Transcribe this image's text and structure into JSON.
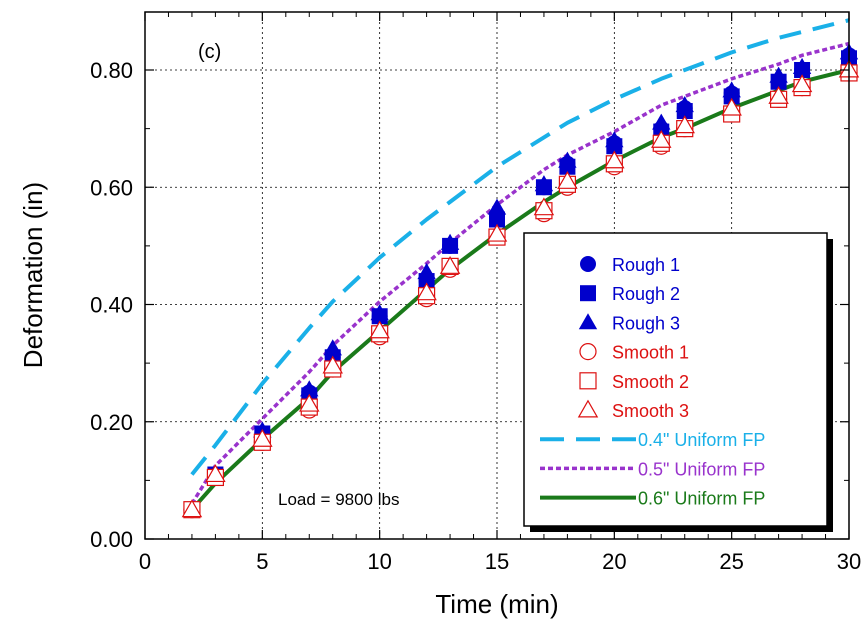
{
  "chart_data": {
    "type": "scatter",
    "panel_label": "(c)",
    "annotation": "Load = 9800 lbs",
    "xlabel": "Time (min)",
    "ylabel": "Deformation (in)",
    "xlim": [
      0,
      30
    ],
    "ylim": [
      0,
      0.9
    ],
    "xticks": [
      0,
      5,
      10,
      15,
      20,
      25,
      30
    ],
    "xtick_labels": [
      "0",
      "5",
      "10",
      "15",
      "20",
      "25",
      "30"
    ],
    "yticks": [
      0,
      0.2,
      0.4,
      0.6,
      0.8
    ],
    "ytick_labels": [
      "0.00",
      "0.20",
      "0.40",
      "0.60",
      "0.80"
    ],
    "grid": true,
    "legend_position": "bottom-right",
    "series": [
      {
        "name": "Rough 1",
        "kind": "marker",
        "marker": "circle-filled",
        "color": "#0000cc",
        "x": [
          2,
          3,
          5,
          7,
          8,
          10,
          12,
          13,
          15,
          17,
          18,
          20,
          22,
          23,
          25,
          27,
          28,
          30
        ],
        "y": [
          0.05,
          0.11,
          0.18,
          0.25,
          0.31,
          0.38,
          0.44,
          0.5,
          0.55,
          0.6,
          0.64,
          0.675,
          0.7,
          0.735,
          0.76,
          0.78,
          0.8,
          0.825
        ]
      },
      {
        "name": "Rough 2",
        "kind": "marker",
        "marker": "square-filled",
        "color": "#0000cc",
        "x": [
          2,
          3,
          5,
          7,
          8,
          10,
          12,
          13,
          15,
          17,
          18,
          20,
          22,
          23,
          25,
          27,
          28,
          30
        ],
        "y": [
          0.05,
          0.11,
          0.18,
          0.245,
          0.31,
          0.38,
          0.44,
          0.5,
          0.545,
          0.6,
          0.635,
          0.67,
          0.695,
          0.73,
          0.755,
          0.78,
          0.8,
          0.82
        ]
      },
      {
        "name": "Rough 3",
        "kind": "marker",
        "marker": "triangle-filled",
        "color": "#0000cc",
        "x": [
          2,
          3,
          5,
          7,
          8,
          10,
          12,
          13,
          15,
          17,
          18,
          20,
          22,
          23,
          25,
          27,
          28,
          30
        ],
        "y": [
          0.05,
          0.11,
          0.185,
          0.255,
          0.325,
          0.385,
          0.455,
          0.505,
          0.565,
          0.605,
          0.645,
          0.68,
          0.71,
          0.74,
          0.765,
          0.79,
          0.805,
          0.83
        ]
      },
      {
        "name": "Smooth 1",
        "kind": "marker",
        "marker": "circle-open",
        "color": "#dd1111",
        "x": [
          2,
          3,
          5,
          7,
          8,
          10,
          12,
          13,
          15,
          17,
          18,
          20,
          22,
          23,
          25,
          27,
          28,
          30
        ],
        "y": [
          0.05,
          0.105,
          0.165,
          0.22,
          0.29,
          0.345,
          0.41,
          0.46,
          0.515,
          0.555,
          0.6,
          0.635,
          0.67,
          0.7,
          0.725,
          0.75,
          0.77,
          0.795
        ]
      },
      {
        "name": "Smooth 2",
        "kind": "marker",
        "marker": "square-open",
        "color": "#dd1111",
        "x": [
          2,
          3,
          5,
          7,
          8,
          10,
          12,
          13,
          15,
          17,
          18,
          20,
          22,
          23,
          25,
          27,
          28,
          30
        ],
        "y": [
          0.05,
          0.105,
          0.165,
          0.225,
          0.29,
          0.35,
          0.415,
          0.465,
          0.515,
          0.56,
          0.605,
          0.64,
          0.675,
          0.7,
          0.725,
          0.75,
          0.77,
          0.795
        ]
      },
      {
        "name": "Smooth 3",
        "kind": "marker",
        "marker": "triangle-open",
        "color": "#dd1111",
        "x": [
          2,
          3,
          5,
          7,
          8,
          10,
          12,
          13,
          15,
          17,
          18,
          20,
          22,
          23,
          25,
          27,
          28,
          30
        ],
        "y": [
          0.05,
          0.11,
          0.17,
          0.23,
          0.295,
          0.355,
          0.42,
          0.465,
          0.52,
          0.565,
          0.61,
          0.645,
          0.68,
          0.705,
          0.735,
          0.755,
          0.775,
          0.8
        ]
      },
      {
        "name": "0.4\" Uniform FP",
        "kind": "line",
        "dash": "dashed",
        "color": "#1ab0e8",
        "x": [
          2,
          3,
          5,
          7,
          8,
          10,
          12,
          13,
          15,
          17,
          18,
          20,
          22,
          23,
          25,
          27,
          28,
          30
        ],
        "y": [
          0.11,
          0.16,
          0.265,
          0.36,
          0.405,
          0.48,
          0.545,
          0.575,
          0.635,
          0.685,
          0.71,
          0.75,
          0.785,
          0.8,
          0.83,
          0.855,
          0.865,
          0.885
        ]
      },
      {
        "name": "0.5\" Uniform FP",
        "kind": "line",
        "dash": "dotted",
        "color": "#9933cc",
        "x": [
          2,
          3,
          5,
          7,
          8,
          10,
          12,
          13,
          15,
          17,
          18,
          20,
          22,
          23,
          25,
          27,
          28,
          30
        ],
        "y": [
          0.06,
          0.125,
          0.205,
          0.285,
          0.33,
          0.405,
          0.47,
          0.505,
          0.57,
          0.63,
          0.655,
          0.695,
          0.74,
          0.755,
          0.785,
          0.81,
          0.825,
          0.845
        ]
      },
      {
        "name": "0.6\" Uniform FP",
        "kind": "line",
        "dash": "solid",
        "color": "#1a7a1a",
        "x": [
          2,
          3,
          5,
          7,
          8,
          10,
          12,
          13,
          15,
          17,
          18,
          20,
          22,
          23,
          25,
          27,
          28,
          30
        ],
        "y": [
          0.05,
          0.095,
          0.17,
          0.24,
          0.285,
          0.355,
          0.425,
          0.46,
          0.52,
          0.575,
          0.6,
          0.645,
          0.685,
          0.7,
          0.735,
          0.765,
          0.78,
          0.8
        ]
      }
    ]
  }
}
